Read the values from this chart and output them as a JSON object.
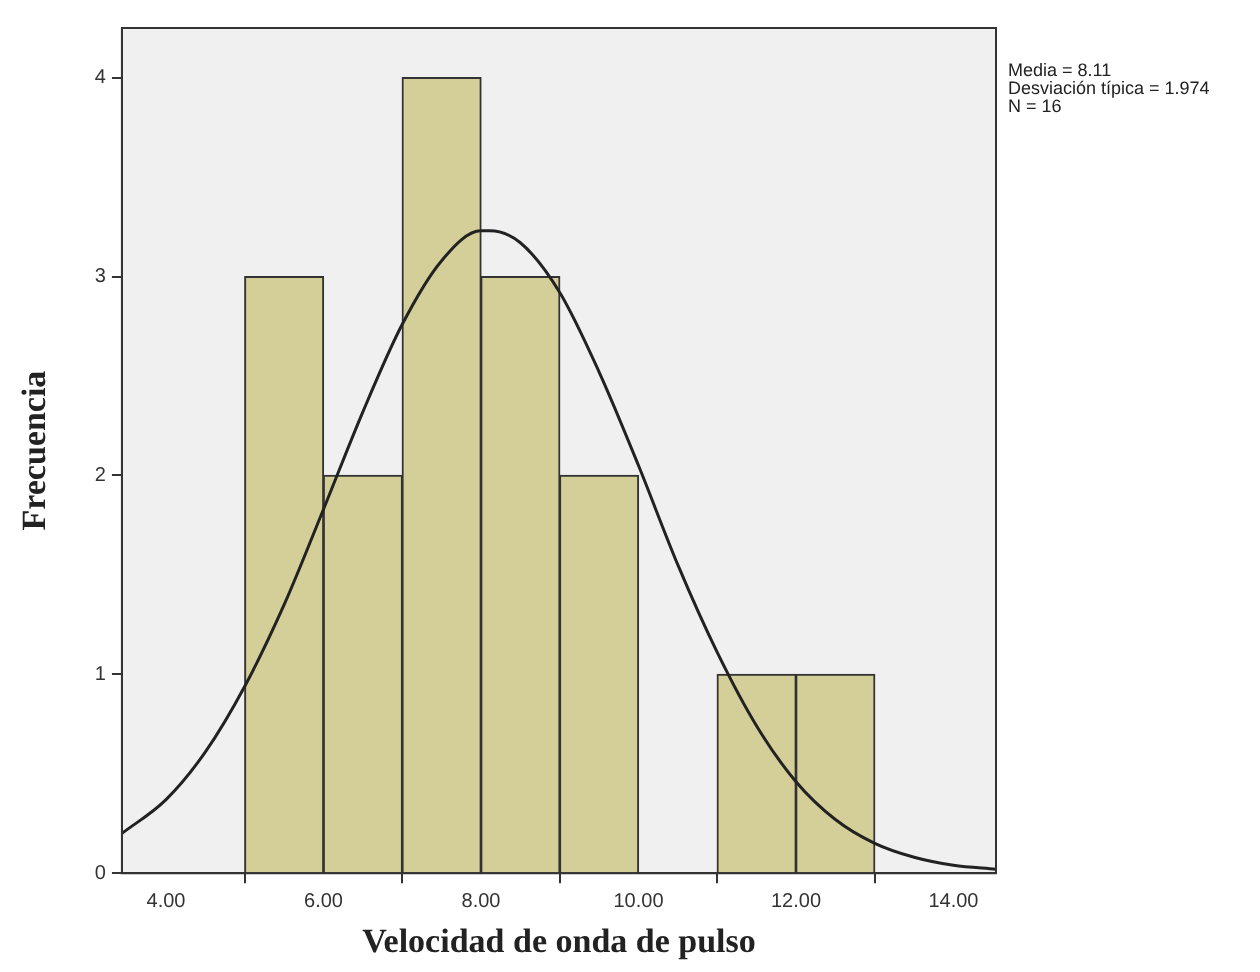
{
  "chart_data": {
    "type": "histogram",
    "xlabel": "Velocidad de onda de pulso",
    "ylabel": "Frecuencia",
    "annotations": [
      "Media = 8.11",
      "Desviación típica = 1.974",
      "N = 16"
    ],
    "bins": [
      5,
      6,
      7,
      8,
      9,
      10,
      11,
      12,
      13
    ],
    "values": [
      3,
      2,
      4,
      3,
      2,
      0,
      1,
      1
    ],
    "color": "#d4cf98",
    "series": [
      {
        "type": "line",
        "color": "#222222",
        "x": [
          3.44,
          4,
          4.5,
          5,
          5.5,
          6,
          6.5,
          7,
          7.5,
          8,
          8.11,
          8.5,
          9,
          9.5,
          10,
          10.5,
          11,
          11.5,
          12,
          12.5,
          13,
          13.5,
          14,
          14.54
        ],
        "values": [
          0.2,
          0.37,
          0.61,
          0.94,
          1.35,
          1.83,
          2.32,
          2.76,
          3.08,
          3.23,
          3.23,
          3.17,
          2.92,
          2.52,
          2.05,
          1.55,
          1.11,
          0.74,
          0.46,
          0.27,
          0.15,
          0.08,
          0.04,
          0.02
        ]
      }
    ],
    "xlim": [
      3.44,
      14.54
    ],
    "xticks": [
      {
        "value": 4,
        "label": "4.00"
      },
      {
        "value": 6,
        "label": "6.00"
      },
      {
        "value": 8,
        "label": "8.00"
      },
      {
        "value": 10,
        "label": "10.00"
      },
      {
        "value": 12,
        "label": "12.00"
      },
      {
        "value": 14,
        "label": "14.00"
      }
    ],
    "ylim": [
      0,
      4.25
    ],
    "yticks": [
      0,
      1,
      2,
      3,
      4
    ],
    "grid": false,
    "legend": false,
    "marker": "none"
  }
}
